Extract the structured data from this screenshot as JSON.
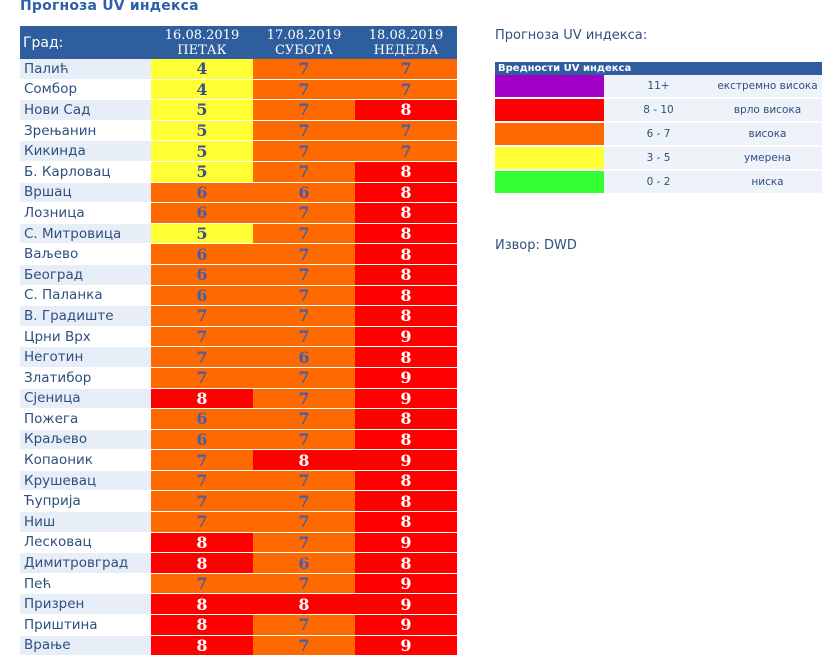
{
  "title": "Прогноза UV индекса",
  "table": {
    "city_header": "Град:",
    "days": [
      {
        "date": "16.08.2019",
        "weekday": "ПЕТАК"
      },
      {
        "date": "17.08.2019",
        "weekday": "СУБОТА"
      },
      {
        "date": "18.08.2019",
        "weekday": "НЕДЕЉА"
      }
    ],
    "rows": [
      {
        "city": "Палић",
        "values": [
          4,
          7,
          7
        ]
      },
      {
        "city": "Сомбор",
        "values": [
          4,
          7,
          7
        ]
      },
      {
        "city": "Нови Сад",
        "values": [
          5,
          7,
          8
        ]
      },
      {
        "city": "Зрењанин",
        "values": [
          5,
          7,
          7
        ]
      },
      {
        "city": "Кикинда",
        "values": [
          5,
          7,
          7
        ]
      },
      {
        "city": "Б. Карловац",
        "values": [
          5,
          7,
          8
        ]
      },
      {
        "city": "Вршац",
        "values": [
          6,
          6,
          8
        ]
      },
      {
        "city": "Лозница",
        "values": [
          6,
          7,
          8
        ]
      },
      {
        "city": "С. Митровица",
        "values": [
          5,
          7,
          8
        ]
      },
      {
        "city": "Ваљево",
        "values": [
          6,
          7,
          8
        ]
      },
      {
        "city": "Београд",
        "values": [
          6,
          7,
          8
        ]
      },
      {
        "city": "С. Паланка",
        "values": [
          6,
          7,
          8
        ]
      },
      {
        "city": "В. Градиште",
        "values": [
          7,
          7,
          8
        ]
      },
      {
        "city": "Црни Врх",
        "values": [
          7,
          7,
          9
        ]
      },
      {
        "city": "Неготин",
        "values": [
          7,
          6,
          8
        ]
      },
      {
        "city": "Златибор",
        "values": [
          7,
          7,
          9
        ]
      },
      {
        "city": "Сјеница",
        "values": [
          8,
          7,
          9
        ]
      },
      {
        "city": "Пожега",
        "values": [
          6,
          7,
          8
        ]
      },
      {
        "city": "Краљево",
        "values": [
          6,
          7,
          8
        ]
      },
      {
        "city": "Копаоник",
        "values": [
          7,
          8,
          9
        ]
      },
      {
        "city": "Крушевац",
        "values": [
          7,
          7,
          8
        ]
      },
      {
        "city": "Ћуприја",
        "values": [
          7,
          7,
          8
        ]
      },
      {
        "city": "Ниш",
        "values": [
          7,
          7,
          8
        ]
      },
      {
        "city": "Лесковац",
        "values": [
          8,
          7,
          9
        ]
      },
      {
        "city": "Димитровград",
        "values": [
          8,
          6,
          8
        ]
      },
      {
        "city": "Пећ",
        "values": [
          7,
          7,
          9
        ]
      },
      {
        "city": "Призрен",
        "values": [
          8,
          8,
          9
        ]
      },
      {
        "city": "Приштина",
        "values": [
          8,
          7,
          9
        ]
      },
      {
        "city": "Врање",
        "values": [
          8,
          7,
          9
        ]
      }
    ]
  },
  "legend": {
    "title": "Прогноза UV индекса:",
    "header": "Вредности UV индекса",
    "items": [
      {
        "range": "11+",
        "label": "екстремно висока",
        "color": "#A000C8"
      },
      {
        "range": "8 - 10",
        "label": "врло висока",
        "color": "#FF0000"
      },
      {
        "range": "6 - 7",
        "label": "висока",
        "color": "#FF6A00"
      },
      {
        "range": "3 - 5",
        "label": "умерена",
        "color": "#FFFF33"
      },
      {
        "range": "0 - 2",
        "label": "ниска",
        "color": "#33FF33"
      }
    ]
  },
  "source": "Извор: DWD"
}
